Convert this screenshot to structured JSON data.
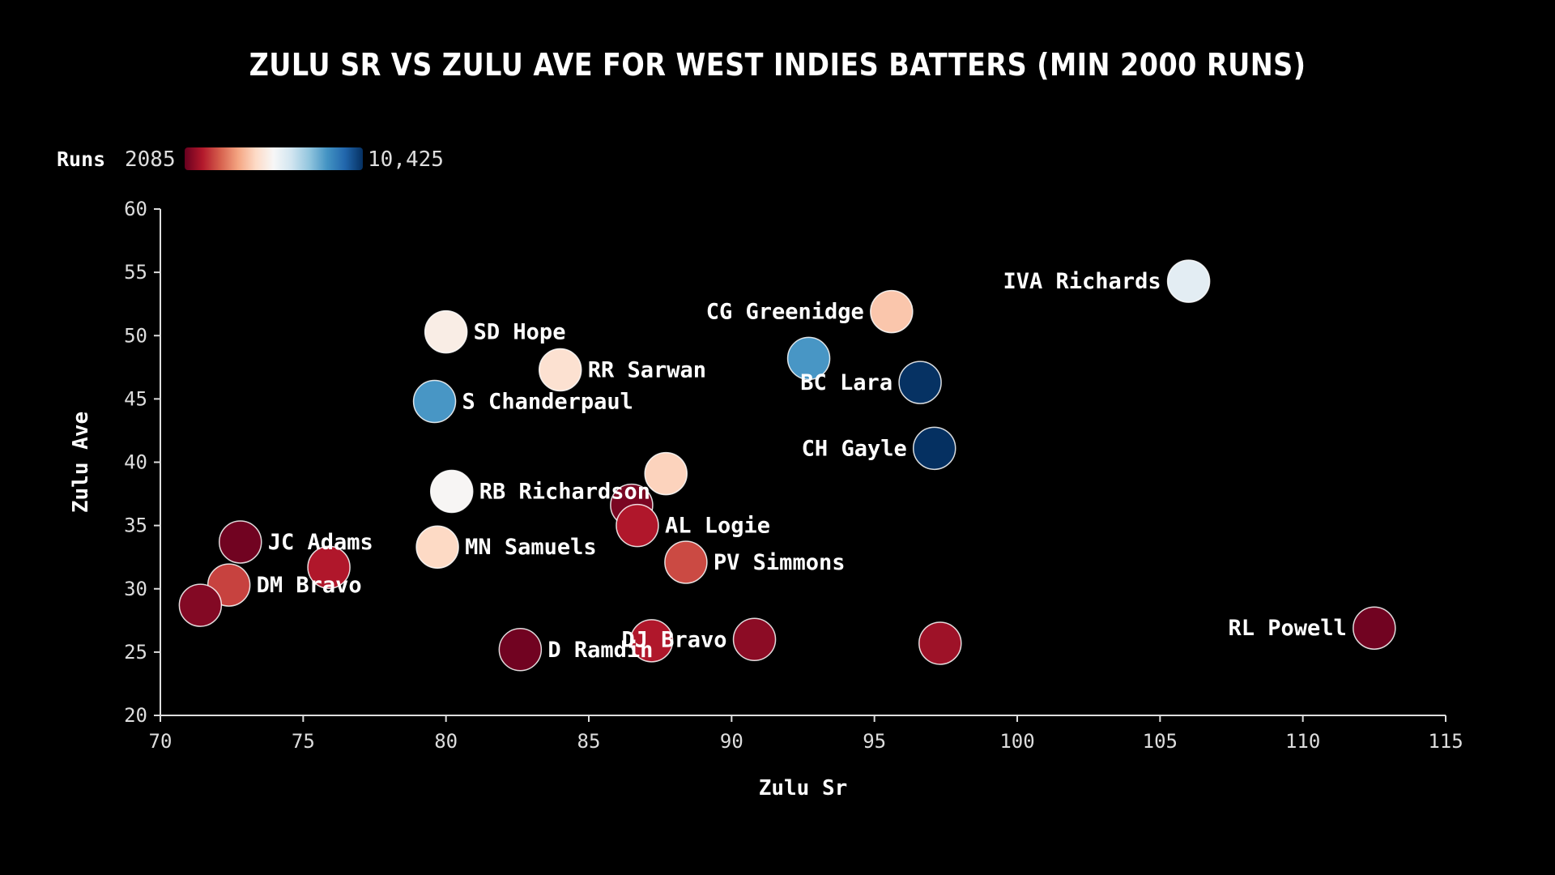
{
  "chart_data": {
    "type": "scatter",
    "title": "Zulu SR vs Zulu Ave for West Indies Batters (min 2000 runs)",
    "xlabel": "Zulu Sr",
    "ylabel": "Zulu Ave",
    "xlim": [
      70,
      115
    ],
    "ylim": [
      20,
      60
    ],
    "xticks": [
      70,
      75,
      80,
      85,
      90,
      95,
      100,
      105,
      110,
      115
    ],
    "yticks": [
      20,
      25,
      30,
      35,
      40,
      45,
      50,
      55,
      60
    ],
    "grid": false,
    "color_scale": {
      "variable": "Runs",
      "min": 2085,
      "max": 10425,
      "min_label": "2085",
      "max_label": "10,425",
      "colors": [
        "#67001f",
        "#b2182b",
        "#d6604d",
        "#f4a582",
        "#fddbc7",
        "#f7f7f7",
        "#d1e5f0",
        "#92c5de",
        "#4393c3",
        "#2166ac",
        "#053061"
      ],
      "legend_placement": "top-left"
    },
    "points": [
      {
        "name": "IVA Richards",
        "x": 106.0,
        "y": 54.3,
        "runs": 6700,
        "label": "IVA Richards",
        "label_side": "left"
      },
      {
        "name": "CG Greenidge",
        "x": 95.6,
        "y": 51.9,
        "runs": 5100,
        "label": "CG Greenidge",
        "label_side": "left"
      },
      {
        "name": "SD Hope",
        "x": 80.0,
        "y": 50.3,
        "runs": 5950,
        "label": "SD Hope",
        "label_side": "right"
      },
      {
        "name": "RR Sarwan",
        "x": 84.0,
        "y": 47.3,
        "runs": 5600,
        "label": "RR Sarwan",
        "label_side": "right"
      },
      {
        "name": "Unlabeled 1",
        "x": 92.7,
        "y": 48.2,
        "runs": 8700,
        "label": "",
        "label_side": "none"
      },
      {
        "name": "BC Lara",
        "x": 96.6,
        "y": 46.3,
        "runs": 10400,
        "label": "BC Lara",
        "label_side": "left"
      },
      {
        "name": "S Chanderpaul",
        "x": 79.6,
        "y": 44.8,
        "runs": 8700,
        "label": "S Chanderpaul",
        "label_side": "right"
      },
      {
        "name": "CH Gayle",
        "x": 97.1,
        "y": 41.1,
        "runs": 10425,
        "label": "CH Gayle",
        "label_side": "left"
      },
      {
        "name": "Unlabeled 2",
        "x": 87.7,
        "y": 39.1,
        "runs": 5300,
        "label": "",
        "label_side": "none"
      },
      {
        "name": "RB Richardson",
        "x": 80.2,
        "y": 37.7,
        "runs": 6200,
        "label": "RB Richardson",
        "label_side": "right"
      },
      {
        "name": "Unlabeled 3",
        "x": 86.5,
        "y": 36.6,
        "runs": 2300,
        "label": "",
        "label_side": "none"
      },
      {
        "name": "AL Logie",
        "x": 86.7,
        "y": 35.0,
        "runs": 2900,
        "label": "AL Logie",
        "label_side": "right"
      },
      {
        "name": "JC Adams",
        "x": 72.8,
        "y": 33.7,
        "runs": 2200,
        "label": "JC Adams",
        "label_side": "right"
      },
      {
        "name": "MN Samuels",
        "x": 79.7,
        "y": 33.3,
        "runs": 5400,
        "label": "MN Samuels",
        "label_side": "right"
      },
      {
        "name": "PV Simmons",
        "x": 88.4,
        "y": 32.1,
        "runs": 3500,
        "label": "PV Simmons",
        "label_side": "right"
      },
      {
        "name": "Unlabeled 4",
        "x": 75.9,
        "y": 31.7,
        "runs": 2900,
        "label": "",
        "label_side": "none"
      },
      {
        "name": "DM Bravo",
        "x": 72.4,
        "y": 30.3,
        "runs": 3400,
        "label": "DM Bravo",
        "label_side": "right"
      },
      {
        "name": "Unlabeled 5",
        "x": 71.4,
        "y": 28.7,
        "runs": 2400,
        "label": "",
        "label_side": "none"
      },
      {
        "name": "RL Powell",
        "x": 112.5,
        "y": 26.9,
        "runs": 2200,
        "label": "RL Powell",
        "label_side": "left"
      },
      {
        "name": "DJ Bravo",
        "x": 90.8,
        "y": 26.0,
        "runs": 2500,
        "label": "DJ Bravo",
        "label_side": "left"
      },
      {
        "name": "Unlabeled 6",
        "x": 97.3,
        "y": 25.7,
        "runs": 2700,
        "label": "",
        "label_side": "none"
      },
      {
        "name": "Unlabeled 7",
        "x": 87.2,
        "y": 25.9,
        "runs": 2900,
        "label": "",
        "label_side": "none"
      },
      {
        "name": "D Ramdin",
        "x": 82.6,
        "y": 25.2,
        "runs": 2200,
        "label": "D Ramdin",
        "label_side": "right"
      }
    ]
  }
}
